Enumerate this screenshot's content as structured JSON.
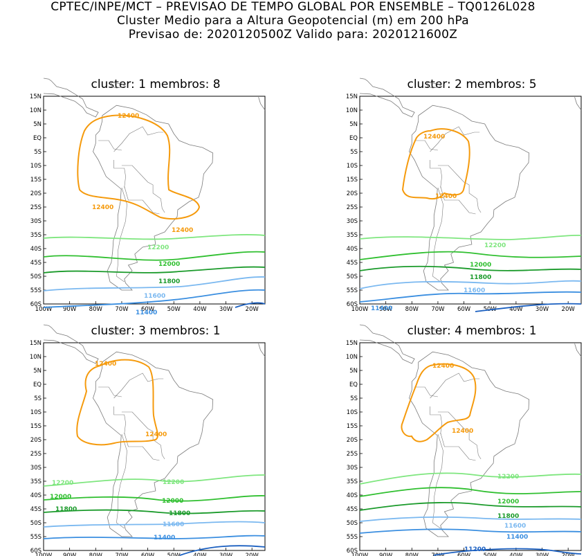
{
  "header": {
    "line1": "CPTEC/INPE/MCT – PREVISAO DE TEMPO GLOBAL POR ENSEMBLE – TQ0126L028",
    "line2": "Cluster Medio para a Altura Geopotencial (m) em 200 hPa",
    "line3": "Previsao de: 2020120500Z   Valido para: 2020121600Z"
  },
  "axes": {
    "lat_labels": [
      "15N",
      "10N",
      "5N",
      "EQ",
      "5S",
      "10S",
      "15S",
      "20S",
      "25S",
      "30S",
      "35S",
      "40S",
      "45S",
      "50S",
      "55S",
      "60S"
    ],
    "lon_labels": [
      "100W",
      "90W",
      "80W",
      "70W",
      "60W",
      "50W",
      "40W",
      "30W",
      "20W"
    ]
  },
  "colors": {
    "c12400": "#f59a0c",
    "c12200": "#7ee67e",
    "c12000": "#2fbf2f",
    "c11800": "#1a9a2a",
    "c11600": "#7ab8f0",
    "c11400": "#3a8ee0",
    "c11200": "#1a5fc0"
  },
  "panels": [
    {
      "title": "cluster: 1   membros: 8",
      "labels": {
        "l12400a": "12400",
        "l12400b": "12400",
        "l12400c": "12400",
        "l12200": "12200",
        "l12000": "12000",
        "l11800": "11800",
        "l11600": "11600",
        "l11400": "11400"
      }
    },
    {
      "title": "cluster: 2   membros: 5",
      "labels": {
        "l12400a": "12400",
        "l12400b": "12400",
        "l12200": "12200",
        "l12000": "12000",
        "l11800": "11800",
        "l11600": "11600",
        "l11400": "11400"
      }
    },
    {
      "title": "cluster: 3   membros: 1",
      "labels": {
        "l12400a": "12400",
        "l12400b": "12400",
        "l12200a": "12200",
        "l12200b": "12200",
        "l12000a": "12000",
        "l12000b": "12000",
        "l11800a": "11800",
        "l11800b": "11800",
        "l11600": "11600",
        "l11400": "11400"
      }
    },
    {
      "title": "cluster: 4   membros: 1",
      "labels": {
        "l12400a": "12400",
        "l12400b": "12400",
        "l12200": "12200",
        "l12000": "12000",
        "l11800": "11800",
        "l11600": "11600",
        "l11400": "11400",
        "l11200": "11200"
      }
    }
  ]
}
